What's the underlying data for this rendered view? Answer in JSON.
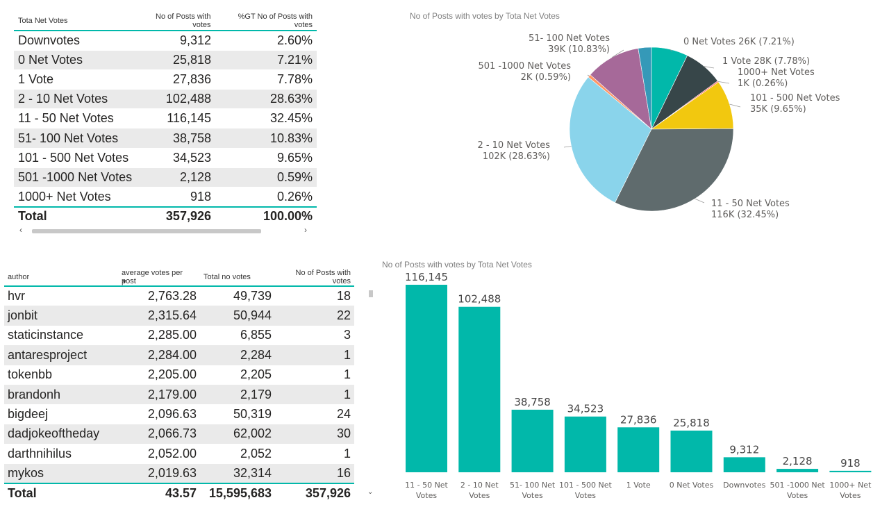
{
  "table1": {
    "headers": [
      "Tota Net Votes",
      "No of Posts with votes",
      "%GT No of Posts with votes"
    ],
    "rows": [
      [
        "Downvotes",
        "9,312",
        "2.60%"
      ],
      [
        "0 Net Votes",
        "25,818",
        "7.21%"
      ],
      [
        "1 Vote",
        "27,836",
        "7.78%"
      ],
      [
        "2 - 10  Net Votes",
        "102,488",
        "28.63%"
      ],
      [
        "11 - 50 Net Votes",
        "116,145",
        "32.45%"
      ],
      [
        "51- 100 Net Votes",
        "38,758",
        "10.83%"
      ],
      [
        "101 - 500 Net Votes",
        "34,523",
        "9.65%"
      ],
      [
        "501 -1000 Net Votes",
        "2,128",
        "0.59%"
      ],
      [
        "1000+  Net Votes",
        "918",
        "0.26%"
      ]
    ],
    "total": [
      "Total",
      "357,926",
      "100.00%"
    ],
    "scroll_left": "‹",
    "scroll_right": "›"
  },
  "table2": {
    "headers": [
      "author",
      "average votes per post",
      "Total no votes",
      "No of Posts with votes"
    ],
    "sort_icon": "▼",
    "rows": [
      [
        "hvr",
        "2,763.28",
        "49,739",
        "18"
      ],
      [
        "jonbit",
        "2,315.64",
        "50,944",
        "22"
      ],
      [
        "staticinstance",
        "2,285.00",
        "6,855",
        "3"
      ],
      [
        "antaresproject",
        "2,284.00",
        "2,284",
        "1"
      ],
      [
        "tokenbb",
        "2,205.00",
        "2,205",
        "1"
      ],
      [
        "brandonh",
        "2,179.00",
        "2,179",
        "1"
      ],
      [
        "bigdeej",
        "2,096.63",
        "50,319",
        "24"
      ],
      [
        "dadjokeoftheday",
        "2,066.73",
        "62,002",
        "30"
      ],
      [
        "darthnihilus",
        "2,052.00",
        "2,052",
        "1"
      ],
      [
        "mykos",
        "2,019.63",
        "32,314",
        "16"
      ]
    ],
    "total": [
      "Total",
      "43.57",
      "15,595,683",
      "357,926"
    ],
    "scroll_down": "⌄"
  },
  "chart_data": [
    {
      "type": "pie",
      "title": "No of Posts with votes by Tota Net Votes",
      "slices": [
        {
          "name": "0 Net Votes",
          "value": 25818,
          "label": "26K (7.21%)",
          "color": "#01b8aa"
        },
        {
          "name": "1 Vote",
          "value": 27836,
          "label": "28K (7.78%)",
          "color": "#374649"
        },
        {
          "name": "1000+ Net Votes",
          "value": 918,
          "label": "1K (0.26%)",
          "color": "#fd625e"
        },
        {
          "name": "101 - 500 Net Votes",
          "value": 34523,
          "label": "35K (9.65%)",
          "color": "#f2c80f"
        },
        {
          "name": "11 - 50 Net Votes",
          "value": 116145,
          "label": "116K (32.45%)",
          "color": "#5f6b6d"
        },
        {
          "name": "2 - 10 Net Votes",
          "value": 102488,
          "label": "102K (28.63%)",
          "color": "#8ad4eb"
        },
        {
          "name": "501 -1000 Net Votes",
          "value": 2128,
          "label": "2K (0.59%)",
          "color": "#fe9666"
        },
        {
          "name": "51- 100 Net Votes",
          "value": 38758,
          "label": "39K (10.83%)",
          "color": "#a66999"
        },
        {
          "name": "Downvotes",
          "value": 9312,
          "label": "",
          "color": "#3599b8"
        }
      ]
    },
    {
      "type": "bar",
      "title": "No of Posts with votes by Tota Net Votes",
      "categories": [
        [
          "11 - 50 Net",
          "Votes"
        ],
        [
          "2 - 10 Net",
          "Votes"
        ],
        [
          "51- 100 Net",
          "Votes"
        ],
        [
          "101 - 500 Net",
          "Votes"
        ],
        [
          "1 Vote"
        ],
        [
          "0 Net Votes"
        ],
        [
          "Downvotes"
        ],
        [
          "501 -1000 Net",
          "Votes"
        ],
        [
          "1000+ Net",
          "Votes"
        ]
      ],
      "values": [
        116145,
        102488,
        38758,
        34523,
        27836,
        25818,
        9312,
        2128,
        918
      ],
      "value_labels": [
        "116,145",
        "102,488",
        "38,758",
        "34,523",
        "27,836",
        "25,818",
        "9,312",
        "2,128",
        "918"
      ],
      "ylim": [
        0,
        116145
      ],
      "color": "#01b8aa"
    }
  ]
}
